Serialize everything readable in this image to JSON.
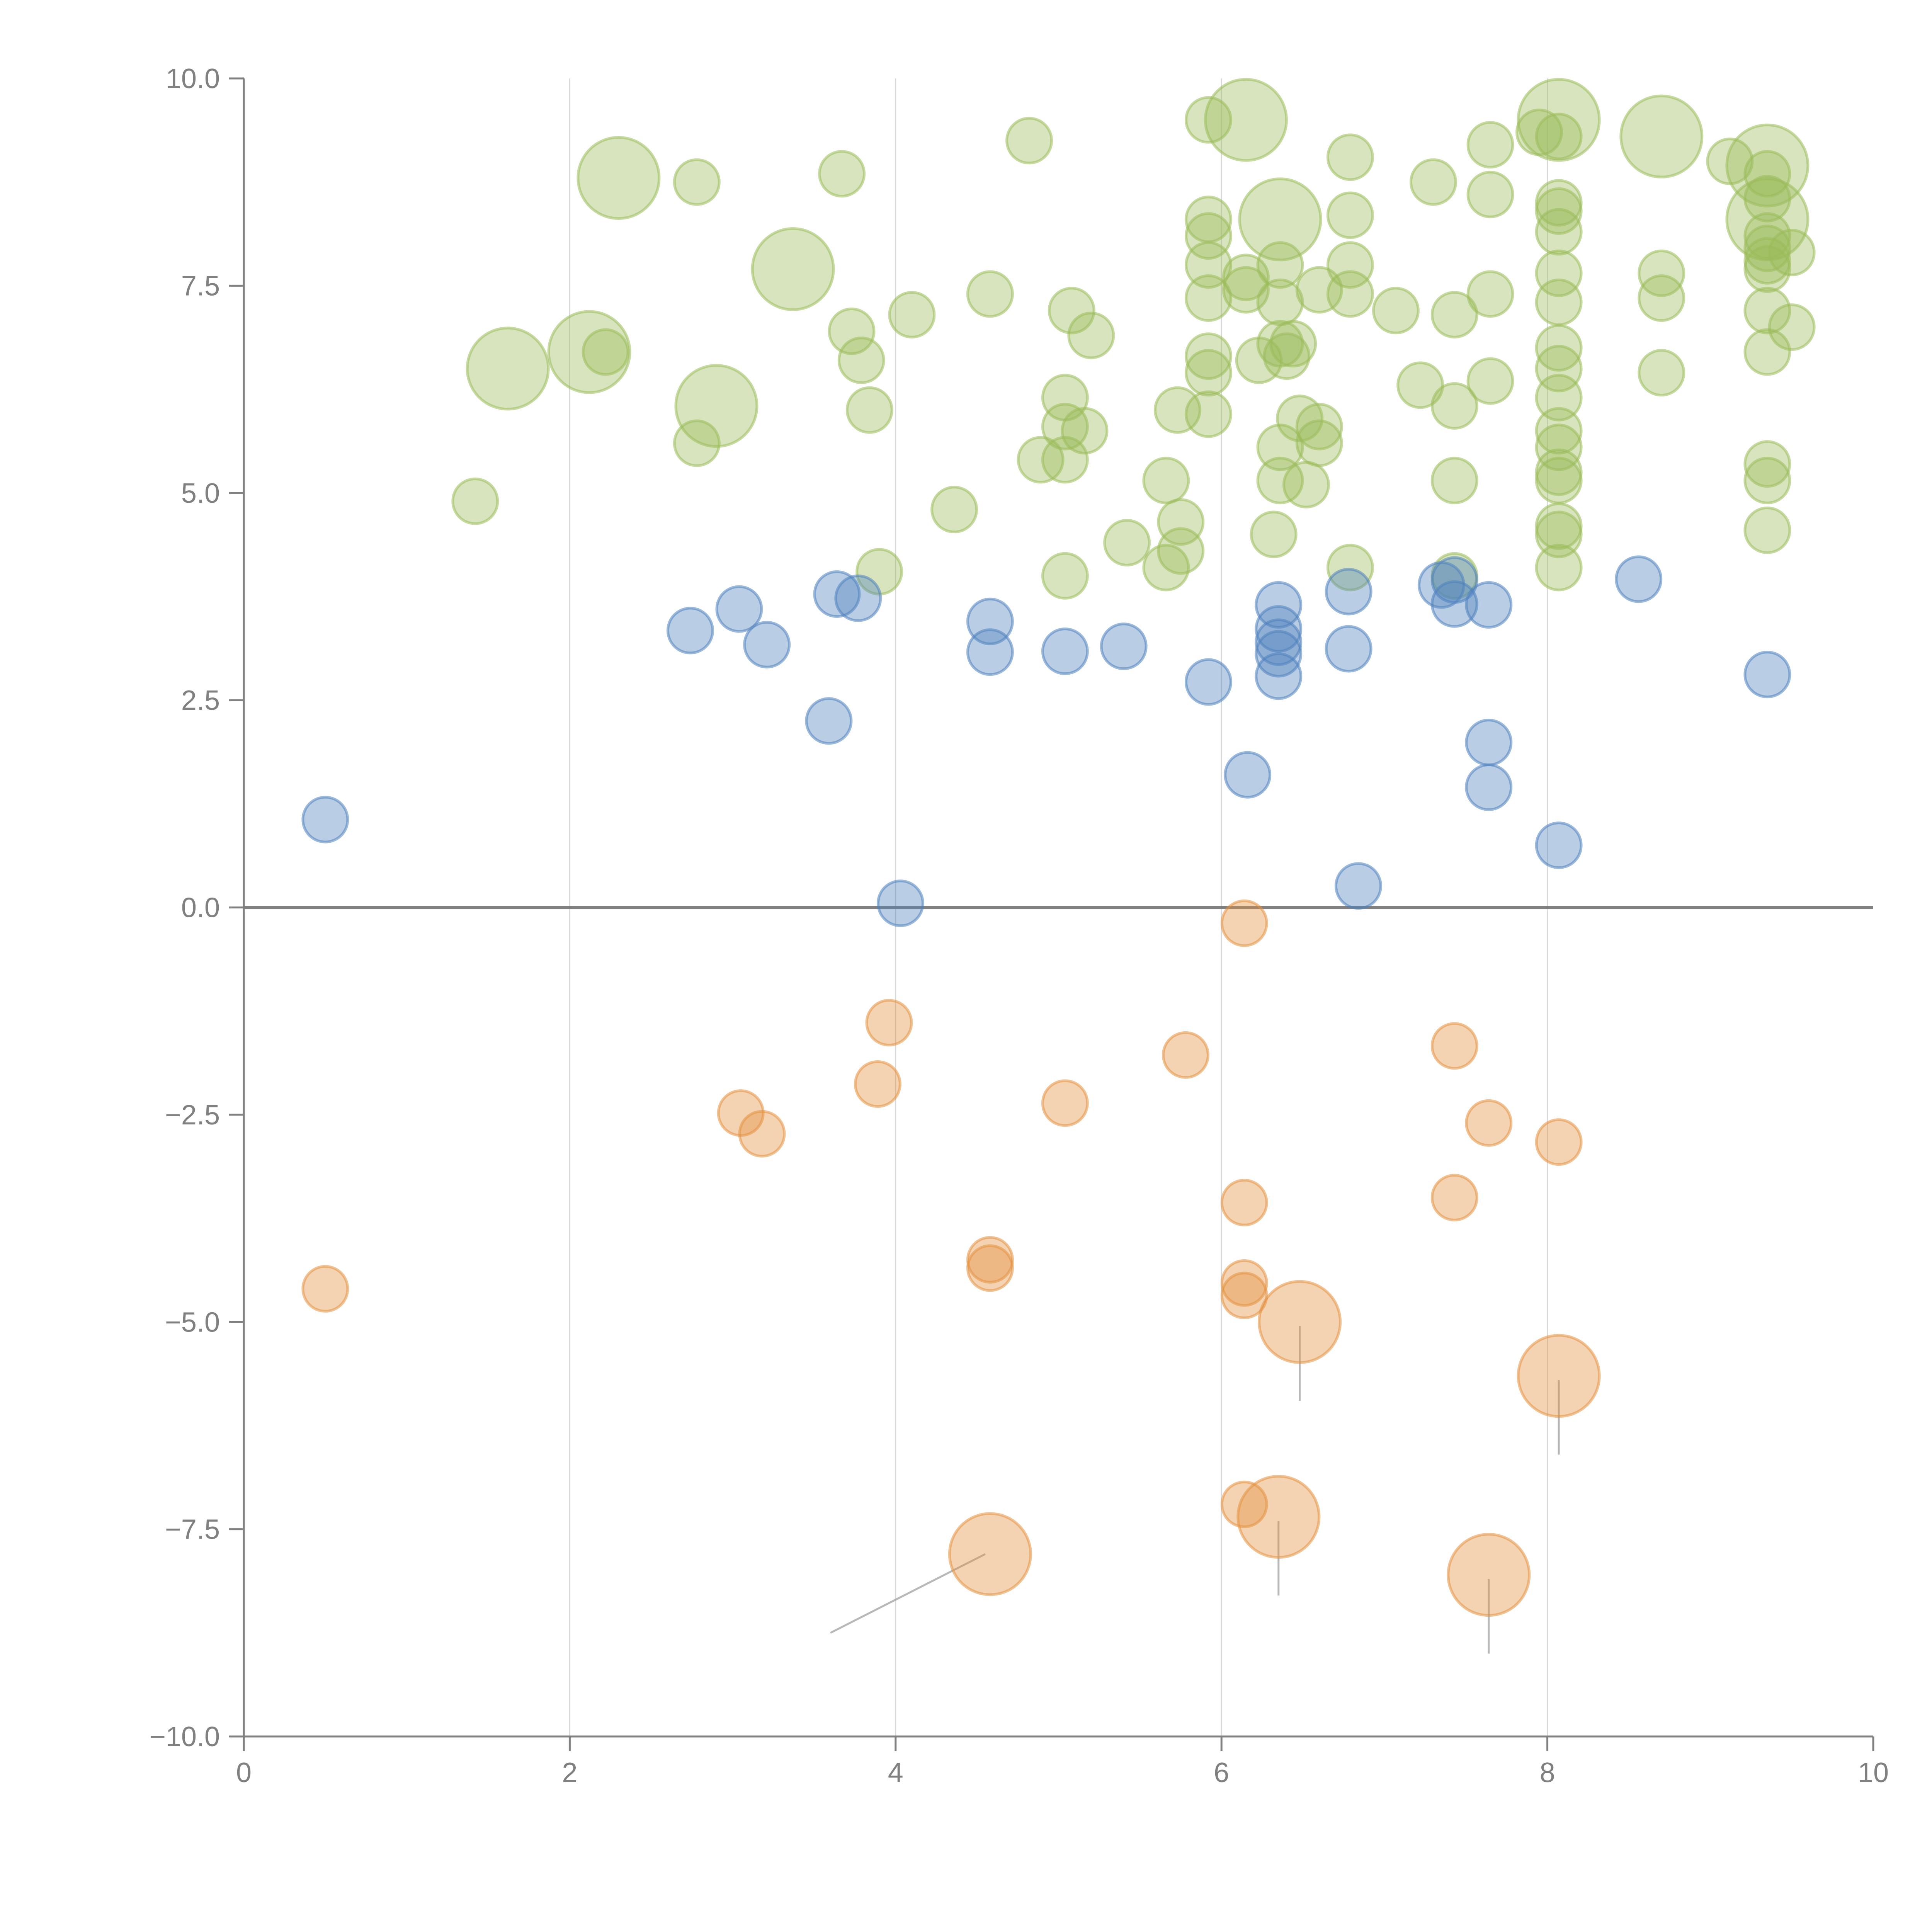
{
  "chart_data": {
    "type": "scatter",
    "title": "",
    "xlabel": "",
    "ylabel": "",
    "xlim": [
      0,
      10
    ],
    "ylim": [
      -10,
      10
    ],
    "x_ticks": [
      "0",
      "2",
      "4",
      "6",
      "8",
      "10"
    ],
    "y_ticks": [
      "−10.0",
      "−7.5",
      "−5.0",
      "−2.5",
      "0.0",
      "2.5",
      "5.0",
      "7.5",
      "10.0"
    ],
    "grid": "vertical lines at x=2,4,6,8",
    "zero_line": 0,
    "legend": "none",
    "colors": {
      "green": "#9bbb59",
      "blue": "#4f81bd",
      "orange": "#e3913f"
    },
    "series": [
      {
        "name": "green",
        "points": [
          [
            1.42,
            4.9,
            1
          ],
          [
            1.62,
            6.5,
            3
          ],
          [
            2.12,
            6.7,
            3
          ],
          [
            2.22,
            6.7,
            1
          ],
          [
            2.3,
            8.8,
            3
          ],
          [
            2.78,
            8.75,
            1
          ],
          [
            2.78,
            5.6,
            1
          ],
          [
            2.9,
            6.05,
            3
          ],
          [
            3.37,
            7.7,
            3
          ],
          [
            3.67,
            8.85,
            1
          ],
          [
            3.73,
            6.95,
            1
          ],
          [
            3.79,
            6.6,
            1
          ],
          [
            3.84,
            6.0,
            1
          ],
          [
            3.9,
            4.05,
            1
          ],
          [
            4.1,
            7.15,
            1
          ],
          [
            4.36,
            4.8,
            1
          ],
          [
            4.58,
            7.4,
            1
          ],
          [
            4.82,
            9.25,
            1
          ],
          [
            4.89,
            5.4,
            1
          ],
          [
            5.04,
            6.15,
            1
          ],
          [
            5.04,
            5.8,
            1
          ],
          [
            5.04,
            5.4,
            1
          ],
          [
            5.04,
            4.0,
            1
          ],
          [
            5.08,
            7.2,
            1
          ],
          [
            5.16,
            5.75,
            1
          ],
          [
            5.2,
            6.9,
            1
          ],
          [
            5.42,
            4.4,
            1
          ],
          [
            5.66,
            5.15,
            1
          ],
          [
            5.66,
            4.1,
            1
          ],
          [
            5.73,
            6.0,
            1
          ],
          [
            5.75,
            4.65,
            1
          ],
          [
            5.75,
            4.3,
            1
          ],
          [
            5.92,
            9.5,
            1
          ],
          [
            5.92,
            8.3,
            1
          ],
          [
            5.92,
            8.1,
            1
          ],
          [
            5.92,
            7.75,
            1
          ],
          [
            5.92,
            7.35,
            1
          ],
          [
            5.92,
            6.65,
            1
          ],
          [
            5.92,
            6.45,
            1
          ],
          [
            5.92,
            5.95,
            1
          ],
          [
            6.15,
            9.5,
            3
          ],
          [
            6.15,
            7.6,
            1
          ],
          [
            6.15,
            7.45,
            1
          ],
          [
            6.23,
            6.6,
            1
          ],
          [
            6.32,
            4.5,
            1
          ],
          [
            6.36,
            8.3,
            3
          ],
          [
            6.36,
            7.75,
            1
          ],
          [
            6.36,
            7.3,
            1
          ],
          [
            6.36,
            6.8,
            1
          ],
          [
            6.36,
            5.55,
            1
          ],
          [
            6.36,
            5.15,
            1
          ],
          [
            6.4,
            6.65,
            1
          ],
          [
            6.44,
            6.8,
            1
          ],
          [
            6.48,
            5.9,
            1
          ],
          [
            6.52,
            5.1,
            1
          ],
          [
            6.6,
            7.45,
            1
          ],
          [
            6.6,
            5.6,
            1
          ],
          [
            6.6,
            5.8,
            1
          ],
          [
            6.79,
            9.05,
            1
          ],
          [
            6.79,
            8.35,
            1
          ],
          [
            6.79,
            7.75,
            1
          ],
          [
            6.79,
            7.4,
            1
          ],
          [
            6.79,
            4.1,
            1
          ],
          [
            7.07,
            7.2,
            1
          ],
          [
            7.22,
            6.3,
            1
          ],
          [
            7.3,
            8.75,
            1
          ],
          [
            7.43,
            7.15,
            1
          ],
          [
            7.43,
            6.05,
            1
          ],
          [
            7.43,
            5.15,
            1
          ],
          [
            7.43,
            4.0,
            1
          ],
          [
            7.65,
            9.2,
            1
          ],
          [
            7.65,
            8.6,
            1
          ],
          [
            7.65,
            7.4,
            1
          ],
          [
            7.65,
            6.35,
            1
          ],
          [
            7.95,
            9.35,
            1
          ],
          [
            8.07,
            9.5,
            3
          ],
          [
            8.07,
            9.3,
            1
          ],
          [
            8.07,
            8.5,
            1
          ],
          [
            8.07,
            8.4,
            1
          ],
          [
            8.07,
            8.15,
            1
          ],
          [
            8.07,
            7.65,
            1
          ],
          [
            8.07,
            7.3,
            1
          ],
          [
            8.07,
            6.75,
            1
          ],
          [
            8.07,
            6.5,
            1
          ],
          [
            8.07,
            6.15,
            1
          ],
          [
            8.07,
            5.75,
            1
          ],
          [
            8.07,
            5.55,
            1
          ],
          [
            8.07,
            5.25,
            1
          ],
          [
            8.07,
            5.15,
            1
          ],
          [
            8.07,
            4.6,
            1
          ],
          [
            8.07,
            4.5,
            1
          ],
          [
            8.07,
            4.1,
            1
          ],
          [
            8.7,
            9.3,
            3
          ],
          [
            8.7,
            7.65,
            1
          ],
          [
            8.7,
            7.35,
            1
          ],
          [
            8.7,
            6.45,
            1
          ],
          [
            9.12,
            9.0,
            1
          ],
          [
            9.35,
            8.95,
            3
          ],
          [
            9.35,
            8.85,
            1
          ],
          [
            9.35,
            8.55,
            1
          ],
          [
            9.35,
            8.3,
            3
          ],
          [
            9.35,
            8.1,
            1
          ],
          [
            9.35,
            7.95,
            1
          ],
          [
            9.35,
            7.8,
            1
          ],
          [
            9.35,
            7.7,
            1
          ],
          [
            9.35,
            7.2,
            1
          ],
          [
            9.35,
            6.7,
            1
          ],
          [
            9.35,
            5.35,
            1
          ],
          [
            9.35,
            5.15,
            1
          ],
          [
            9.35,
            4.55,
            1
          ],
          [
            9.5,
            7.9,
            1
          ],
          [
            9.5,
            7.0,
            1
          ]
        ]
      },
      {
        "name": "blue",
        "points": [
          [
            0.5,
            1.06,
            1
          ],
          [
            2.74,
            3.34,
            1
          ],
          [
            3.04,
            3.6,
            1
          ],
          [
            3.21,
            3.17,
            1
          ],
          [
            3.59,
            2.25,
            1
          ],
          [
            3.64,
            3.78,
            1
          ],
          [
            3.77,
            3.73,
            1
          ],
          [
            4.03,
            0.05,
            1
          ],
          [
            4.58,
            3.45,
            1
          ],
          [
            4.58,
            3.08,
            1
          ],
          [
            5.04,
            3.09,
            1
          ],
          [
            5.4,
            3.15,
            1
          ],
          [
            5.92,
            2.72,
            1
          ],
          [
            6.16,
            1.6,
            1
          ],
          [
            6.35,
            3.65,
            1
          ],
          [
            6.35,
            3.36,
            1
          ],
          [
            6.35,
            3.06,
            1
          ],
          [
            6.35,
            2.79,
            1
          ],
          [
            6.35,
            3.2,
            1
          ],
          [
            6.78,
            3.81,
            1
          ],
          [
            6.78,
            3.12,
            1
          ],
          [
            6.84,
            0.26,
            1
          ],
          [
            7.35,
            3.89,
            1
          ],
          [
            7.43,
            3.95,
            1
          ],
          [
            7.43,
            3.66,
            1
          ],
          [
            7.64,
            3.65,
            1
          ],
          [
            7.64,
            1.99,
            1
          ],
          [
            7.64,
            1.45,
            1
          ],
          [
            8.07,
            0.75,
            1
          ],
          [
            8.56,
            3.96,
            1
          ],
          [
            9.35,
            2.81,
            1
          ]
        ]
      },
      {
        "name": "orange",
        "points": [
          [
            0.5,
            -4.6,
            1
          ],
          [
            3.05,
            -2.48,
            1
          ],
          [
            3.18,
            -2.73,
            1
          ],
          [
            3.89,
            -2.13,
            1
          ],
          [
            3.96,
            -1.39,
            1
          ],
          [
            4.58,
            -4.25,
            1
          ],
          [
            4.58,
            -4.35,
            1
          ],
          [
            4.58,
            -7.8,
            3
          ],
          [
            5.04,
            -2.36,
            1
          ],
          [
            5.78,
            -1.78,
            1
          ],
          [
            6.14,
            -0.19,
            1
          ],
          [
            6.14,
            -3.56,
            1
          ],
          [
            6.14,
            -4.53,
            1
          ],
          [
            6.14,
            -4.68,
            1
          ],
          [
            6.14,
            -7.2,
            1
          ],
          [
            6.35,
            -7.35,
            3
          ],
          [
            6.48,
            -5.0,
            3
          ],
          [
            7.43,
            -1.67,
            1
          ],
          [
            7.43,
            -3.5,
            1
          ],
          [
            7.64,
            -2.6,
            1
          ],
          [
            7.64,
            -8.05,
            3
          ],
          [
            8.07,
            -2.83,
            1
          ],
          [
            8.07,
            -5.65,
            3
          ]
        ]
      }
    ],
    "connector_lines": [
      {
        "from": [
          4.55,
          -7.8
        ],
        "to": [
          3.6,
          -8.75
        ]
      },
      {
        "from": [
          6.48,
          -5.05
        ],
        "to": [
          6.48,
          -5.95
        ]
      },
      {
        "from": [
          6.35,
          -7.4
        ],
        "to": [
          6.35,
          -8.3
        ]
      },
      {
        "from": [
          7.64,
          -8.1
        ],
        "to": [
          7.64,
          -9.0
        ]
      },
      {
        "from": [
          8.07,
          -5.7
        ],
        "to": [
          8.07,
          -6.6
        ]
      }
    ]
  }
}
